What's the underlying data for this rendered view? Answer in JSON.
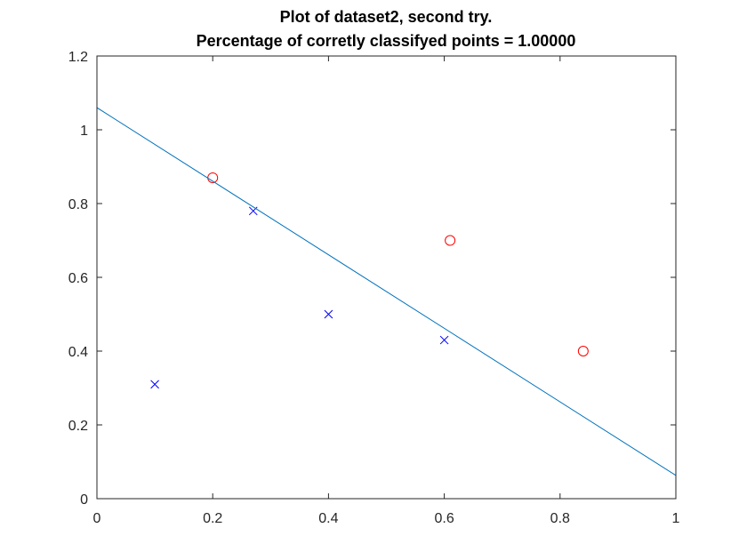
{
  "chart_data": {
    "type": "scatter",
    "title": "Plot of dataset2, second try.",
    "subtitle": "Percentage of corretly classifyed points = 1.00000",
    "xlabel": "",
    "ylabel": "",
    "xlim": [
      0,
      1
    ],
    "ylim": [
      0,
      1.2
    ],
    "x_ticks": [
      "0",
      "0.2",
      "0.4",
      "0.6",
      "0.8",
      "1"
    ],
    "y_ticks": [
      "0",
      "0.2",
      "0.4",
      "0.6",
      "0.8",
      "1",
      "1.2"
    ],
    "x_tick_values": [
      0,
      0.2,
      0.4,
      0.6,
      0.8,
      1
    ],
    "y_tick_values": [
      0,
      0.2,
      0.4,
      0.6,
      0.8,
      1,
      1.2
    ],
    "grid": false,
    "series": [
      {
        "marker": "x",
        "color": "#0000ff",
        "points": [
          {
            "x": 0.1,
            "y": 0.31
          },
          {
            "x": 0.27,
            "y": 0.78
          },
          {
            "x": 0.4,
            "y": 0.5
          },
          {
            "x": 0.6,
            "y": 0.43
          }
        ]
      },
      {
        "marker": "circle",
        "color": "#ff0000",
        "points": [
          {
            "x": 0.2,
            "y": 0.87
          },
          {
            "x": 0.61,
            "y": 0.7
          },
          {
            "x": 0.84,
            "y": 0.4
          }
        ]
      },
      {
        "type": "line",
        "color": "#0072bd",
        "points": [
          {
            "x": 0,
            "y": 1.06
          },
          {
            "x": 1,
            "y": 0.063
          }
        ]
      }
    ]
  }
}
